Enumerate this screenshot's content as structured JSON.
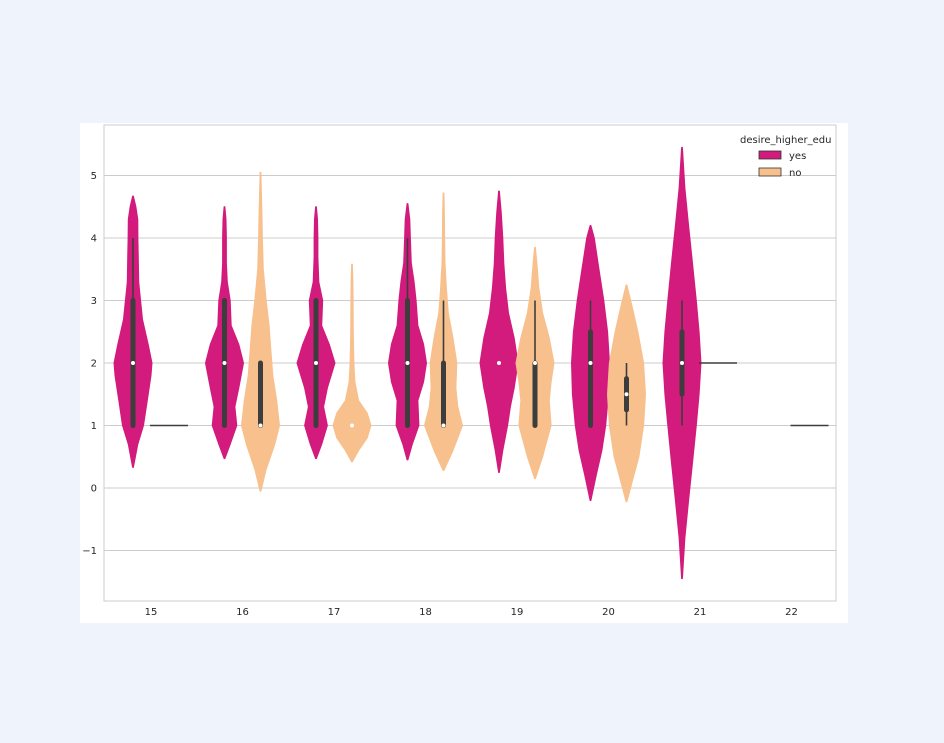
{
  "chart_data": {
    "type": "violin",
    "title": "",
    "xlabel": "",
    "ylabel": "",
    "categories": [
      "15",
      "16",
      "17",
      "18",
      "19",
      "20",
      "21",
      "22"
    ],
    "ylim": [
      -1.8,
      5.8
    ],
    "yticks": [
      -1,
      0,
      1,
      2,
      3,
      4,
      5
    ],
    "yticklabels": [
      "−1",
      "0",
      "1",
      "2",
      "3",
      "4",
      "5"
    ],
    "grid": true,
    "legend": {
      "title": "desire_higher_edu",
      "placement": "top-right",
      "entries": [
        "yes",
        "no"
      ]
    },
    "series": [
      {
        "name": "yes",
        "color": "#d21b7c",
        "violins": [
          {
            "category": "15",
            "min": 0.33,
            "max": 4.67,
            "q1": 1.0,
            "median": 2.0,
            "q3": 3.0,
            "whisker_low": 1.0,
            "whisker_high": 4.0,
            "profile": [
              [
                0.33,
                0.02
              ],
              [
                0.7,
                0.25
              ],
              [
                1.0,
                0.55
              ],
              [
                1.4,
                0.75
              ],
              [
                1.8,
                0.95
              ],
              [
                2.0,
                1.0
              ],
              [
                2.3,
                0.8
              ],
              [
                2.7,
                0.5
              ],
              [
                3.0,
                0.4
              ],
              [
                3.3,
                0.3
              ],
              [
                3.7,
                0.28
              ],
              [
                4.0,
                0.26
              ],
              [
                4.3,
                0.25
              ],
              [
                4.5,
                0.15
              ],
              [
                4.67,
                0.02
              ]
            ]
          },
          {
            "category": "16",
            "min": 0.47,
            "max": 4.5,
            "q1": 1.0,
            "median": 2.0,
            "q3": 3.0,
            "whisker_low": 1.0,
            "whisker_high": 3.0,
            "profile": [
              [
                0.47,
                0.02
              ],
              [
                0.7,
                0.3
              ],
              [
                1.0,
                0.65
              ],
              [
                1.3,
                0.55
              ],
              [
                1.6,
                0.75
              ],
              [
                2.0,
                1.0
              ],
              [
                2.3,
                0.75
              ],
              [
                2.6,
                0.35
              ],
              [
                3.0,
                0.3
              ],
              [
                3.3,
                0.15
              ],
              [
                3.6,
                0.1
              ],
              [
                4.0,
                0.1
              ],
              [
                4.3,
                0.08
              ],
              [
                4.5,
                0.02
              ]
            ]
          },
          {
            "category": "17",
            "min": 0.47,
            "max": 4.5,
            "q1": 1.0,
            "median": 2.0,
            "q3": 3.0,
            "whisker_low": 1.0,
            "whisker_high": 3.0,
            "profile": [
              [
                0.47,
                0.02
              ],
              [
                0.7,
                0.3
              ],
              [
                1.0,
                0.6
              ],
              [
                1.3,
                0.4
              ],
              [
                1.6,
                0.6
              ],
              [
                2.0,
                1.0
              ],
              [
                2.3,
                0.7
              ],
              [
                2.6,
                0.3
              ],
              [
                3.0,
                0.35
              ],
              [
                3.3,
                0.15
              ],
              [
                3.7,
                0.1
              ],
              [
                4.0,
                0.1
              ],
              [
                4.3,
                0.08
              ],
              [
                4.5,
                0.02
              ]
            ]
          },
          {
            "category": "18",
            "min": 0.45,
            "max": 4.55,
            "q1": 1.0,
            "median": 2.0,
            "q3": 3.0,
            "whisker_low": 1.0,
            "whisker_high": 4.0,
            "profile": [
              [
                0.45,
                0.02
              ],
              [
                0.7,
                0.25
              ],
              [
                1.0,
                0.6
              ],
              [
                1.4,
                0.55
              ],
              [
                1.7,
                0.85
              ],
              [
                2.0,
                1.0
              ],
              [
                2.3,
                0.85
              ],
              [
                2.6,
                0.55
              ],
              [
                3.0,
                0.45
              ],
              [
                3.3,
                0.35
              ],
              [
                3.6,
                0.2
              ],
              [
                4.0,
                0.15
              ],
              [
                4.3,
                0.12
              ],
              [
                4.55,
                0.02
              ]
            ]
          },
          {
            "category": "19",
            "min": 0.25,
            "max": 4.75,
            "q1": 2.0,
            "median": 2.0,
            "q3": 2.0,
            "whisker_low": 2.0,
            "whisker_high": 2.0,
            "profile": [
              [
                0.25,
                0.02
              ],
              [
                0.6,
                0.2
              ],
              [
                1.0,
                0.45
              ],
              [
                1.3,
                0.6
              ],
              [
                1.6,
                0.8
              ],
              [
                2.0,
                1.0
              ],
              [
                2.4,
                0.8
              ],
              [
                2.8,
                0.5
              ],
              [
                3.2,
                0.35
              ],
              [
                3.6,
                0.25
              ],
              [
                4.0,
                0.2
              ],
              [
                4.4,
                0.12
              ],
              [
                4.75,
                0.02
              ]
            ]
          },
          {
            "category": "20",
            "min": -0.2,
            "max": 4.2,
            "q1": 1.0,
            "median": 2.0,
            "q3": 2.5,
            "whisker_low": 1.0,
            "whisker_high": 3.0,
            "profile": [
              [
                -0.2,
                0.02
              ],
              [
                0.2,
                0.3
              ],
              [
                0.6,
                0.6
              ],
              [
                1.0,
                0.8
              ],
              [
                1.5,
                0.95
              ],
              [
                2.0,
                1.0
              ],
              [
                2.5,
                0.9
              ],
              [
                3.0,
                0.7
              ],
              [
                3.5,
                0.45
              ],
              [
                4.0,
                0.2
              ],
              [
                4.2,
                0.02
              ]
            ]
          },
          {
            "category": "21",
            "min": -1.45,
            "max": 5.45,
            "q1": 1.5,
            "median": 2.0,
            "q3": 2.5,
            "whisker_low": 1.0,
            "whisker_high": 3.0,
            "profile": [
              [
                -1.45,
                0.02
              ],
              [
                -0.8,
                0.15
              ],
              [
                -0.2,
                0.35
              ],
              [
                0.4,
                0.55
              ],
              [
                1.0,
                0.75
              ],
              [
                1.5,
                0.9
              ],
              [
                2.0,
                1.0
              ],
              [
                2.5,
                0.9
              ],
              [
                3.0,
                0.75
              ],
              [
                3.6,
                0.55
              ],
              [
                4.2,
                0.35
              ],
              [
                4.8,
                0.15
              ],
              [
                5.45,
                0.02
              ]
            ]
          }
        ]
      },
      {
        "name": "no",
        "color": "#f7c08c",
        "violins": [
          {
            "category": "15",
            "value": 1.0,
            "single_value": true
          },
          {
            "category": "16",
            "min": -0.05,
            "max": 5.05,
            "q1": 1.0,
            "median": 1.0,
            "q3": 2.0,
            "whisker_low": 1.0,
            "whisker_high": 2.0,
            "profile": [
              [
                -0.05,
                0.02
              ],
              [
                0.3,
                0.3
              ],
              [
                0.7,
                0.75
              ],
              [
                1.0,
                1.0
              ],
              [
                1.4,
                0.85
              ],
              [
                1.8,
                0.65
              ],
              [
                2.2,
                0.55
              ],
              [
                2.6,
                0.45
              ],
              [
                3.0,
                0.3
              ],
              [
                3.5,
                0.15
              ],
              [
                4.0,
                0.1
              ],
              [
                4.5,
                0.07
              ],
              [
                5.05,
                0.02
              ]
            ]
          },
          {
            "category": "17",
            "min": 0.42,
            "max": 3.58,
            "q1": 1.0,
            "median": 1.0,
            "q3": 1.0,
            "whisker_low": 1.0,
            "whisker_high": 1.0,
            "profile": [
              [
                0.42,
                0.02
              ],
              [
                0.6,
                0.35
              ],
              [
                0.8,
                0.8
              ],
              [
                1.0,
                1.0
              ],
              [
                1.2,
                0.8
              ],
              [
                1.4,
                0.35
              ],
              [
                1.7,
                0.15
              ],
              [
                2.0,
                0.1
              ],
              [
                2.5,
                0.07
              ],
              [
                3.0,
                0.06
              ],
              [
                3.3,
                0.05
              ],
              [
                3.58,
                0.02
              ]
            ]
          },
          {
            "category": "18",
            "min": 0.28,
            "max": 4.72,
            "q1": 1.0,
            "median": 1.0,
            "q3": 2.0,
            "whisker_low": 1.0,
            "whisker_high": 3.0,
            "profile": [
              [
                0.28,
                0.02
              ],
              [
                0.6,
                0.5
              ],
              [
                1.0,
                1.0
              ],
              [
                1.3,
                0.75
              ],
              [
                1.6,
                0.65
              ],
              [
                2.0,
                0.7
              ],
              [
                2.4,
                0.5
              ],
              [
                2.8,
                0.25
              ],
              [
                3.2,
                0.15
              ],
              [
                3.6,
                0.08
              ],
              [
                4.0,
                0.06
              ],
              [
                4.4,
                0.05
              ],
              [
                4.72,
                0.02
              ]
            ]
          },
          {
            "category": "19",
            "min": 0.15,
            "max": 3.85,
            "q1": 1.0,
            "median": 2.0,
            "q3": 2.0,
            "whisker_low": 1.0,
            "whisker_high": 3.0,
            "profile": [
              [
                0.15,
                0.02
              ],
              [
                0.5,
                0.4
              ],
              [
                1.0,
                0.85
              ],
              [
                1.4,
                0.75
              ],
              [
                1.7,
                0.85
              ],
              [
                2.0,
                1.0
              ],
              [
                2.4,
                0.75
              ],
              [
                2.8,
                0.4
              ],
              [
                3.2,
                0.2
              ],
              [
                3.6,
                0.1
              ],
              [
                3.85,
                0.02
              ]
            ]
          },
          {
            "category": "20",
            "min": -0.22,
            "max": 3.25,
            "q1": 1.25,
            "median": 1.5,
            "q3": 1.75,
            "whisker_low": 1.0,
            "whisker_high": 2.0,
            "profile": [
              [
                -0.22,
                0.02
              ],
              [
                0.1,
                0.3
              ],
              [
                0.5,
                0.65
              ],
              [
                1.0,
                0.9
              ],
              [
                1.5,
                1.0
              ],
              [
                2.0,
                0.9
              ],
              [
                2.5,
                0.6
              ],
              [
                2.9,
                0.3
              ],
              [
                3.25,
                0.02
              ]
            ]
          },
          {
            "category": "21",
            "value": 2.0,
            "single_value": true
          },
          {
            "category": "22",
            "value": 1.0,
            "single_value": true
          }
        ]
      }
    ]
  }
}
